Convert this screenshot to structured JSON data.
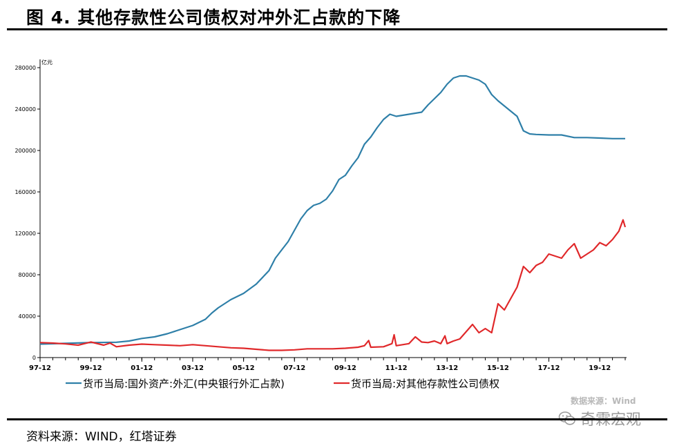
{
  "header": {
    "title": "图 4. 其他存款性公司债权对冲外汇占款的下降"
  },
  "footer": {
    "source": "资料来源：WIND，红塔证券"
  },
  "watermark": {
    "line1": "数据来源：Wind",
    "brand": "奇霖宏观",
    "icon": "wechat-icon"
  },
  "colors": {
    "series1": "#2e7fa8",
    "series2": "#e0282a",
    "axis": "#000000",
    "watermark": "#b8b8b8"
  },
  "chart_data": {
    "type": "line",
    "ylabel": "亿元",
    "ylim": [
      0,
      280000
    ],
    "yticks": [
      "0",
      "40000",
      "80000",
      "120000",
      "160000",
      "200000",
      "240000",
      "280000"
    ],
    "xlim": [
      "1997-12",
      "2020-12"
    ],
    "xticks": [
      {
        "label": "97-12",
        "date": "1997-12"
      },
      {
        "label": "99-12",
        "date": "1999-12"
      },
      {
        "label": "01-12",
        "date": "2001-12"
      },
      {
        "label": "03-12",
        "date": "2003-12"
      },
      {
        "label": "05-12",
        "date": "2005-12"
      },
      {
        "label": "07-12",
        "date": "2007-12"
      },
      {
        "label": "09-12",
        "date": "2009-12"
      },
      {
        "label": "11-12",
        "date": "2011-12"
      },
      {
        "label": "13-12",
        "date": "2013-12"
      },
      {
        "label": "15-12",
        "date": "2015-12"
      },
      {
        "label": "17-12",
        "date": "2017-12"
      },
      {
        "label": "19-12",
        "date": "2019-12"
      }
    ],
    "legend_position": "bottom",
    "series": [
      {
        "name": "货币当局:国外资产:外汇(中央银行外汇占款)",
        "points": [
          [
            "1997-12",
            13000
          ],
          [
            "1998-12",
            13700
          ],
          [
            "1999-12",
            14500
          ],
          [
            "2000-12",
            14800
          ],
          [
            "2001-06",
            16000
          ],
          [
            "2001-12",
            18500
          ],
          [
            "2002-06",
            20000
          ],
          [
            "2002-12",
            23000
          ],
          [
            "2003-06",
            27000
          ],
          [
            "2003-12",
            31000
          ],
          [
            "2004-03",
            34000
          ],
          [
            "2004-06",
            37000
          ],
          [
            "2004-09",
            43000
          ],
          [
            "2004-12",
            48000
          ],
          [
            "2005-06",
            56000
          ],
          [
            "2005-12",
            62000
          ],
          [
            "2006-06",
            71000
          ],
          [
            "2006-12",
            84000
          ],
          [
            "2007-03",
            96000
          ],
          [
            "2007-06",
            104000
          ],
          [
            "2007-09",
            112000
          ],
          [
            "2007-12",
            123000
          ],
          [
            "2008-03",
            134000
          ],
          [
            "2008-06",
            142000
          ],
          [
            "2008-09",
            147000
          ],
          [
            "2008-12",
            149000
          ],
          [
            "2009-03",
            153000
          ],
          [
            "2009-06",
            161000
          ],
          [
            "2009-09",
            172000
          ],
          [
            "2009-12",
            176000
          ],
          [
            "2010-03",
            185000
          ],
          [
            "2010-06",
            193000
          ],
          [
            "2010-09",
            206000
          ],
          [
            "2010-12",
            213000
          ],
          [
            "2011-03",
            222000
          ],
          [
            "2011-06",
            230000
          ],
          [
            "2011-09",
            235000
          ],
          [
            "2011-12",
            233000
          ],
          [
            "2012-03",
            234000
          ],
          [
            "2012-06",
            235000
          ],
          [
            "2012-09",
            236000
          ],
          [
            "2012-12",
            237000
          ],
          [
            "2013-03",
            244000
          ],
          [
            "2013-06",
            250000
          ],
          [
            "2013-09",
            256000
          ],
          [
            "2013-12",
            264000
          ],
          [
            "2014-03",
            270000
          ],
          [
            "2014-06",
            272000
          ],
          [
            "2014-09",
            272000
          ],
          [
            "2014-12",
            270000
          ],
          [
            "2015-03",
            268000
          ],
          [
            "2015-06",
            264000
          ],
          [
            "2015-09",
            254000
          ],
          [
            "2015-12",
            248000
          ],
          [
            "2016-03",
            243000
          ],
          [
            "2016-06",
            238000
          ],
          [
            "2016-09",
            233000
          ],
          [
            "2016-12",
            219000
          ],
          [
            "2017-03",
            216000
          ],
          [
            "2017-06",
            215500
          ],
          [
            "2017-12",
            215000
          ],
          [
            "2018-06",
            215000
          ],
          [
            "2018-12",
            212500
          ],
          [
            "2019-06",
            212500
          ],
          [
            "2019-12",
            212000
          ],
          [
            "2020-06",
            211500
          ],
          [
            "2020-12",
            211500
          ]
        ]
      },
      {
        "name": "货币当局:对其他存款性公司债权",
        "points": [
          [
            "1997-12",
            14500
          ],
          [
            "1998-06",
            14000
          ],
          [
            "1998-12",
            13200
          ],
          [
            "1999-06",
            12000
          ],
          [
            "1999-12",
            15000
          ],
          [
            "2000-06",
            12000
          ],
          [
            "2000-09",
            14000
          ],
          [
            "2000-12",
            10500
          ],
          [
            "2001-06",
            12000
          ],
          [
            "2001-12",
            13000
          ],
          [
            "2002-06",
            12500
          ],
          [
            "2002-12",
            12000
          ],
          [
            "2003-06",
            11500
          ],
          [
            "2003-12",
            12500
          ],
          [
            "2004-06",
            11500
          ],
          [
            "2004-12",
            10500
          ],
          [
            "2005-06",
            9500
          ],
          [
            "2005-12",
            9000
          ],
          [
            "2006-06",
            8000
          ],
          [
            "2006-12",
            7000
          ],
          [
            "2007-06",
            7000
          ],
          [
            "2007-12",
            7500
          ],
          [
            "2008-06",
            8500
          ],
          [
            "2008-12",
            8500
          ],
          [
            "2009-06",
            8500
          ],
          [
            "2009-12",
            9000
          ],
          [
            "2010-06",
            10000
          ],
          [
            "2010-09",
            11500
          ],
          [
            "2010-11",
            16500
          ],
          [
            "2010-12",
            10000
          ],
          [
            "2011-06",
            10500
          ],
          [
            "2011-10",
            13500
          ],
          [
            "2011-11",
            22000
          ],
          [
            "2011-12",
            11500
          ],
          [
            "2012-06",
            13500
          ],
          [
            "2012-09",
            20000
          ],
          [
            "2012-12",
            15000
          ],
          [
            "2013-03",
            14500
          ],
          [
            "2013-06",
            16000
          ],
          [
            "2013-09",
            13500
          ],
          [
            "2013-11",
            21000
          ],
          [
            "2013-12",
            13500
          ],
          [
            "2014-03",
            16000
          ],
          [
            "2014-06",
            18000
          ],
          [
            "2014-09",
            25000
          ],
          [
            "2014-12",
            32000
          ],
          [
            "2015-03",
            24000
          ],
          [
            "2015-06",
            28000
          ],
          [
            "2015-09",
            24000
          ],
          [
            "2015-12",
            52000
          ],
          [
            "2016-03",
            46000
          ],
          [
            "2016-06",
            57000
          ],
          [
            "2016-09",
            68000
          ],
          [
            "2016-12",
            88000
          ],
          [
            "2017-03",
            82000
          ],
          [
            "2017-06",
            89000
          ],
          [
            "2017-09",
            92000
          ],
          [
            "2017-12",
            100000
          ],
          [
            "2018-03",
            98000
          ],
          [
            "2018-06",
            96000
          ],
          [
            "2018-09",
            104000
          ],
          [
            "2018-12",
            110000
          ],
          [
            "2019-03",
            96000
          ],
          [
            "2019-06",
            100000
          ],
          [
            "2019-09",
            104000
          ],
          [
            "2019-12",
            111000
          ],
          [
            "2020-03",
            108000
          ],
          [
            "2020-06",
            114000
          ],
          [
            "2020-09",
            122000
          ],
          [
            "2020-11",
            133000
          ],
          [
            "2020-12",
            126000
          ]
        ]
      }
    ]
  }
}
